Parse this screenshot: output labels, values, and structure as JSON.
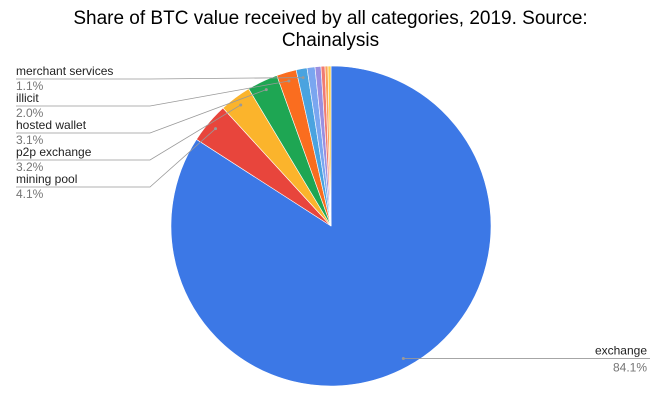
{
  "chart_data": {
    "type": "pie",
    "title": "Share of BTC value received by all categories, 2019. Source: Chainalysis",
    "categories": [
      "exchange",
      "mining pool",
      "p2p exchange",
      "hosted wallet",
      "illicit",
      "merchant services",
      null,
      null,
      null,
      null,
      null
    ],
    "values": [
      84.1,
      4.1,
      3.2,
      3.1,
      2.0,
      1.1,
      0.8,
      0.6,
      0.4,
      0.3,
      0.3
    ],
    "value_labels": [
      "84.1%",
      "4.1%",
      "3.2%",
      "3.1%",
      "2.0%",
      "1.1%",
      null,
      null,
      null,
      null,
      null
    ],
    "colors": [
      "#3c78e6",
      "#e8453c",
      "#fbb42c",
      "#1ea653",
      "#fa6d1f",
      "#4aa3df",
      "#7aa6f0",
      "#9a8fe0",
      "#f07b72",
      "#fca45a",
      "#fcd04f"
    ]
  }
}
